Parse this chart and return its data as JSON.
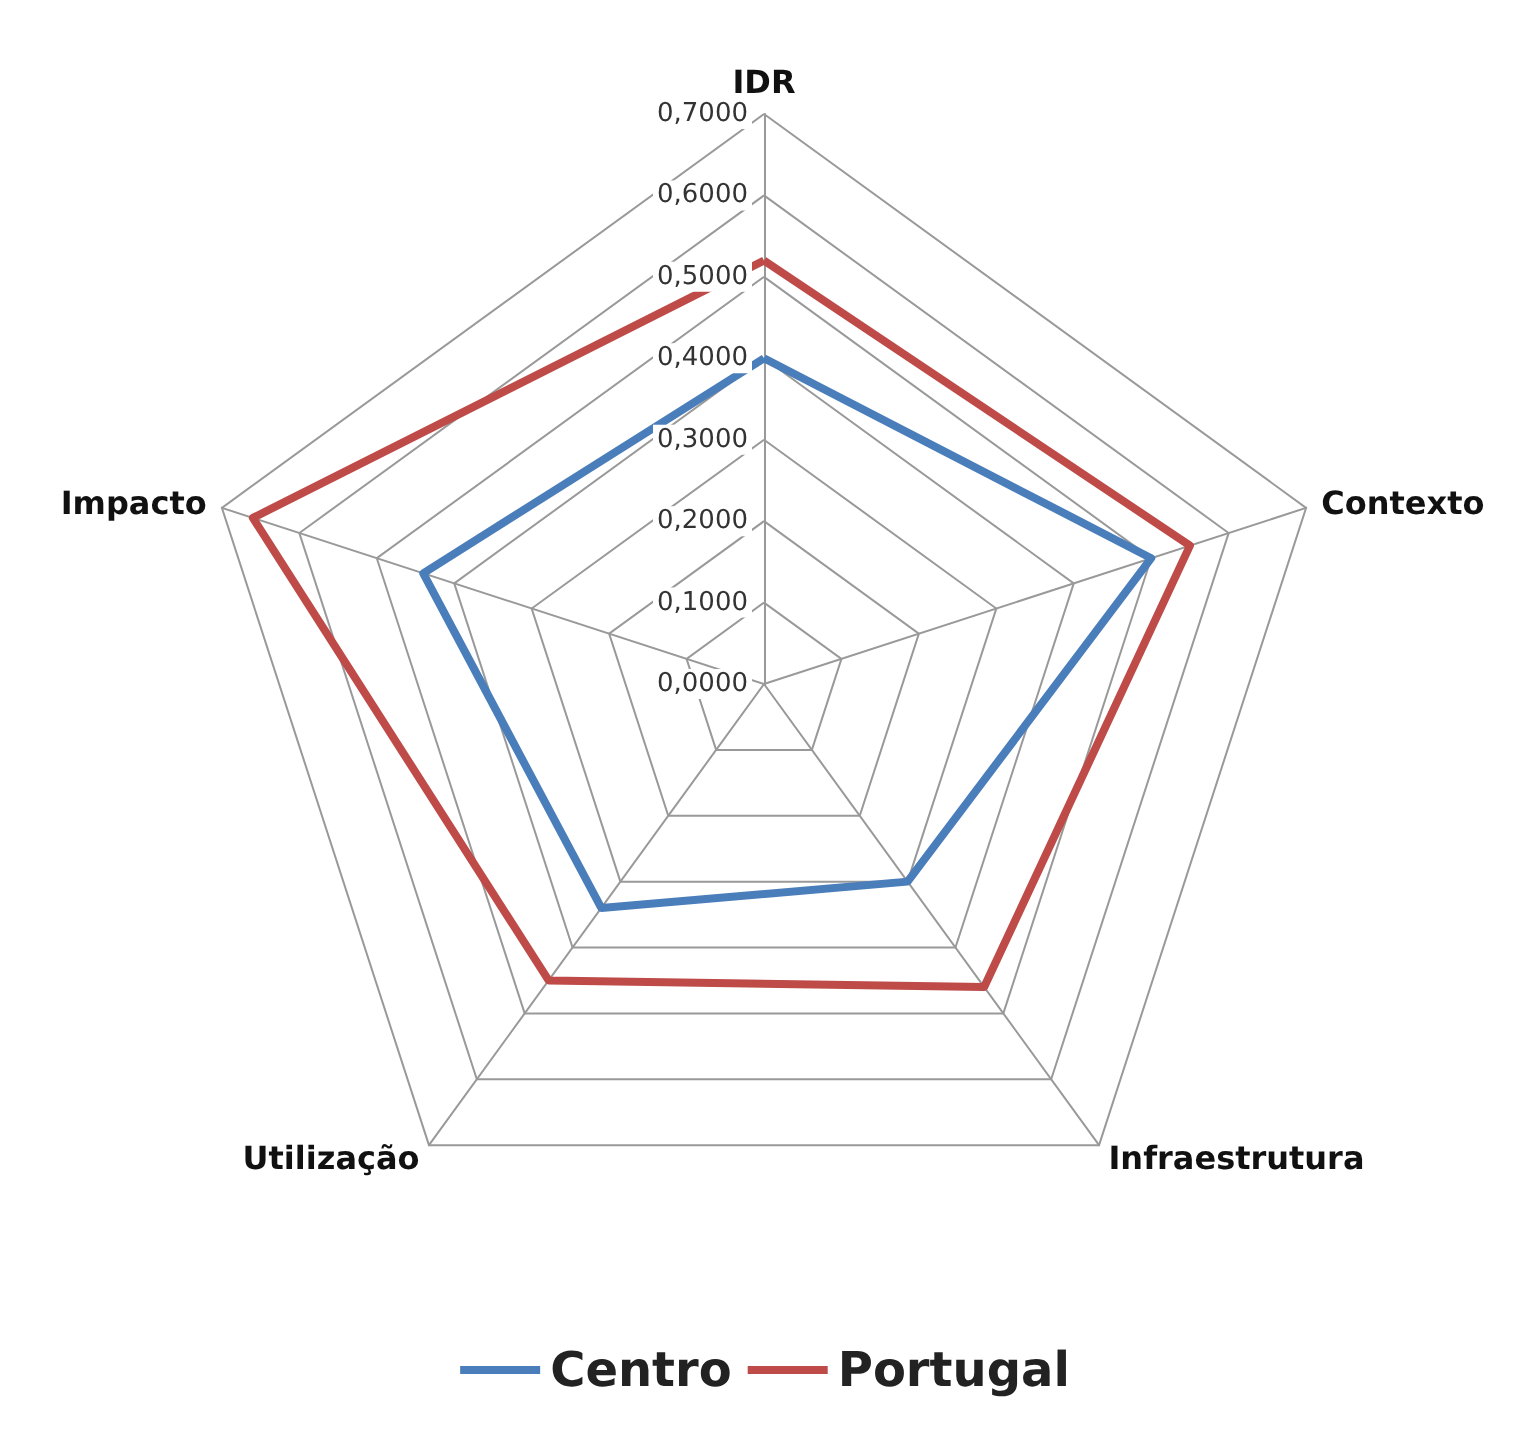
{
  "chart_data": {
    "type": "radar",
    "categories": [
      "IDR",
      "Contexto",
      "Infraestrutura",
      "Utilização",
      "Impacto"
    ],
    "series": [
      {
        "name": "Centro",
        "color": "#4a7ebb",
        "values": [
          0.4,
          0.5,
          0.3,
          0.34,
          0.44
        ]
      },
      {
        "name": "Portugal",
        "color": "#be4b48",
        "values": [
          0.52,
          0.55,
          0.46,
          0.45,
          0.66
        ]
      }
    ],
    "ylim": [
      0,
      0.7
    ],
    "yticks": [
      {
        "value": 0,
        "label": "0,0000"
      },
      {
        "value": 0.1,
        "label": "0,1000"
      },
      {
        "value": 0.2,
        "label": "0,2000"
      },
      {
        "value": 0.3,
        "label": "0,3000"
      },
      {
        "value": 0.4,
        "label": "0,4000"
      },
      {
        "value": 0.5,
        "label": "0,5000"
      },
      {
        "value": 0.6,
        "label": "0,6000"
      },
      {
        "value": 0.7,
        "label": "0,7000"
      }
    ],
    "grid": true,
    "legend": "bottom",
    "marker": "none",
    "line_style": "solid"
  }
}
